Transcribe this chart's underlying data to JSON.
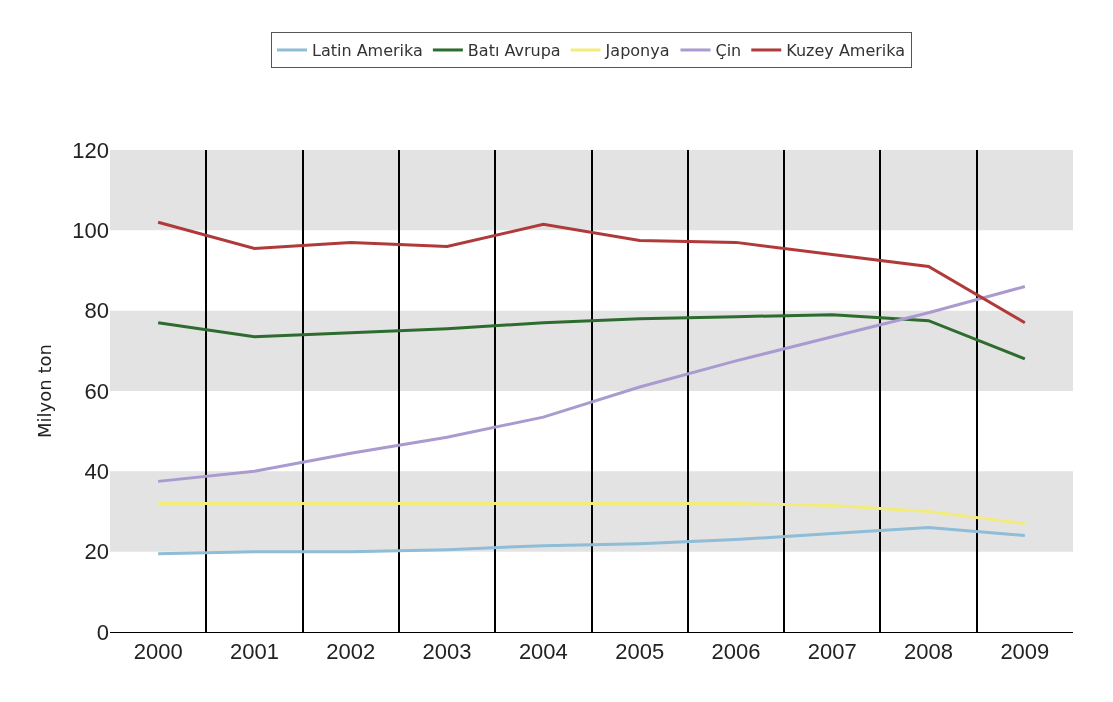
{
  "chart_data": {
    "type": "line",
    "ylabel": "Milyon ton",
    "categories": [
      "2000",
      "2001",
      "2002",
      "2003",
      "2004",
      "2005",
      "2006",
      "2007",
      "2008",
      "2009"
    ],
    "series": [
      {
        "name": "Latin Amerika",
        "color": "#8fbcd6",
        "values": [
          19.5,
          20,
          20,
          20.5,
          21.5,
          22,
          23,
          24.5,
          26,
          24
        ]
      },
      {
        "name": "Batı Avrupa",
        "color": "#2e6b2e",
        "values": [
          77,
          73.5,
          74.5,
          75.5,
          77,
          78,
          78.5,
          79,
          77.5,
          68
        ]
      },
      {
        "name": "Japonya",
        "color": "#f2ec7c",
        "values": [
          32,
          32,
          32,
          32,
          32,
          32,
          32,
          31.5,
          30,
          27
        ]
      },
      {
        "name": "Çin",
        "color": "#a99bd0",
        "values": [
          37.5,
          40,
          44.5,
          48.5,
          53.5,
          61,
          67.5,
          73.5,
          79.5,
          86
        ]
      },
      {
        "name": "Kuzey Amerika",
        "color": "#b03a3a",
        "values": [
          102,
          95.5,
          97,
          96,
          101.5,
          97.5,
          97,
          94,
          91,
          77
        ]
      }
    ],
    "ylim": [
      0,
      120
    ],
    "yticks": [
      0,
      20,
      40,
      60,
      80,
      100,
      120
    ],
    "bands": [
      {
        "axis": "y",
        "from": 20,
        "to": 40,
        "color": "#e3e3e3"
      },
      {
        "axis": "y",
        "from": 60,
        "to": 80,
        "color": "#e3e3e3"
      },
      {
        "axis": "y",
        "from": 100,
        "to": 120,
        "color": "#e3e3e3"
      }
    ],
    "grid": "x",
    "legend": "top",
    "marker": "none",
    "line_style": "solid"
  }
}
